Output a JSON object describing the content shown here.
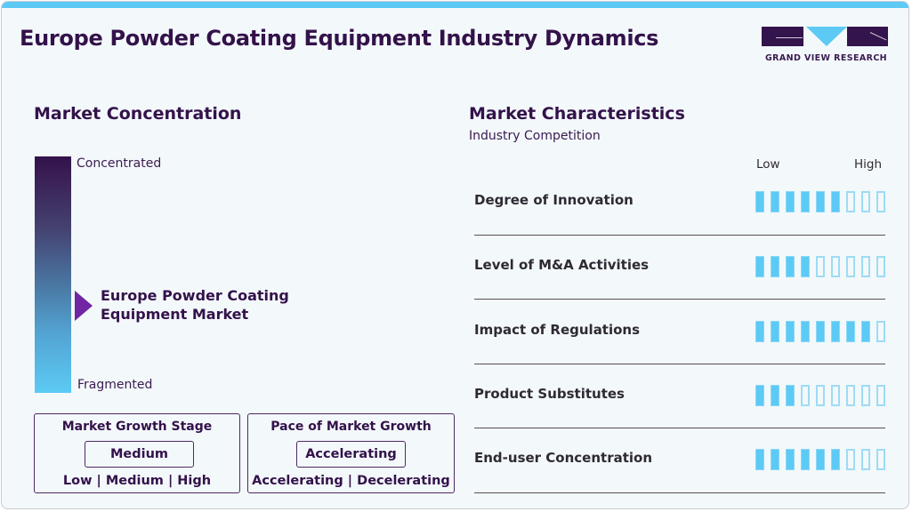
{
  "header": {
    "title": "Europe Powder Coating Equipment Industry Dynamics",
    "logo_text": "GRAND VIEW RESEARCH",
    "accent_color": "#5ccaf5",
    "brand_color": "#33124a"
  },
  "concentration": {
    "title": "Market Concentration",
    "top_label": "Concentrated",
    "bottom_label": "Fragmented",
    "market_line1": "Europe Powder Coating",
    "market_line2": "Equipment Market",
    "pointer_icon": "triangle-right-icon"
  },
  "growth_stage": {
    "title": "Market Growth Stage",
    "value": "Medium",
    "options": "Low | Medium | High"
  },
  "growth_pace": {
    "title": "Pace of Market Growth",
    "value": "Accelerating",
    "options": "Accelerating | Decelerating"
  },
  "characteristics": {
    "title": "Market Characteristics",
    "subtitle": "Industry Competition",
    "low_label": "Low",
    "high_label": "High",
    "total_segments": 9,
    "rows": [
      {
        "label": "Degree of Innovation",
        "filled": 6
      },
      {
        "label": "Level of M&A Activities",
        "filled": 4
      },
      {
        "label": "Impact of Regulations",
        "filled": 8
      },
      {
        "label": "Product Substitutes",
        "filled": 3
      },
      {
        "label": "End-user Concentration",
        "filled": 6
      }
    ]
  }
}
